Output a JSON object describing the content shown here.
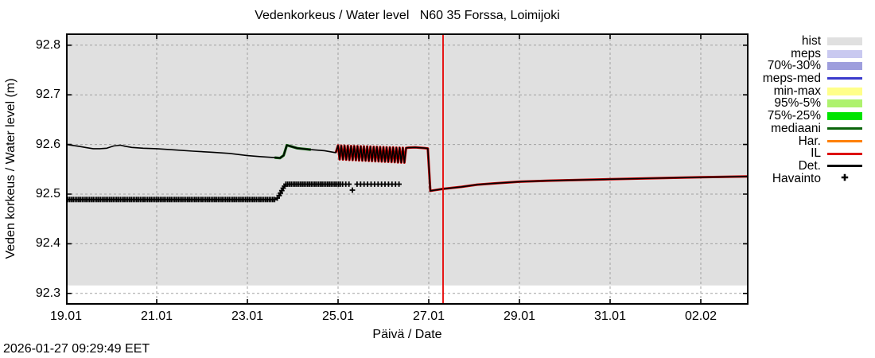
{
  "footer": {
    "timestamp": "2026-01-27 09:29:49 EET"
  },
  "legend": {
    "entries": [
      {
        "label": "hist",
        "type": "band",
        "color": "#e0e0e0"
      },
      {
        "label": "meps",
        "type": "band",
        "color": "#c9c9f0"
      },
      {
        "label": "70%-30%",
        "type": "band",
        "color": "#9e9edd"
      },
      {
        "label": "meps-med",
        "type": "line",
        "color": "#3a3acc"
      },
      {
        "label": "min-max",
        "type": "band",
        "color": "#ffff8a"
      },
      {
        "label": "95%-5%",
        "type": "band",
        "color": "#aef26e"
      },
      {
        "label": "75%-25%",
        "type": "band",
        "color": "#00e400"
      },
      {
        "label": "mediaani",
        "type": "line",
        "color": "#0a640a"
      },
      {
        "label": "Har.",
        "type": "line",
        "color": "#ff8000"
      },
      {
        "label": "IL",
        "type": "line",
        "color": "#dd0000"
      },
      {
        "label": "Det.",
        "type": "line",
        "color": "#000000"
      },
      {
        "label": "Havainto",
        "type": "marker",
        "color": "#000000"
      }
    ],
    "marker_glyph": "✚"
  },
  "chart_data": {
    "type": "line",
    "title": "Vedenkorkeus / Water level   N60 35 Forssa, Loimijoki",
    "xlabel": "Päivä / Date",
    "ylabel": "Veden korkeus / Water level (m)",
    "xlim": [
      19.0,
      34.053
    ],
    "ylim": [
      92.2772,
      92.8237
    ],
    "grid": true,
    "x_ticks": [
      {
        "d": 19,
        "label": "19.01"
      },
      {
        "d": 21,
        "label": "21.01"
      },
      {
        "d": 23,
        "label": "23.01"
      },
      {
        "d": 25,
        "label": "25.01"
      },
      {
        "d": 27,
        "label": "27.01"
      },
      {
        "d": 29,
        "label": "29.01"
      },
      {
        "d": 31,
        "label": "31.01"
      },
      {
        "d": 33,
        "label": "02.02"
      }
    ],
    "y_ticks": [
      {
        "v": 92.3,
        "label": "92.3"
      },
      {
        "v": 92.4,
        "label": "92.4"
      },
      {
        "v": 92.5,
        "label": "92.5"
      },
      {
        "v": 92.6,
        "label": "92.6"
      },
      {
        "v": 92.7,
        "label": "92.7"
      },
      {
        "v": 92.8,
        "label": "92.8"
      }
    ],
    "hist_band": {
      "top": 92.8237,
      "bottom": 92.316,
      "color": "#e0e0e0"
    },
    "now_line": {
      "day": 27.316,
      "color": "#e60000"
    },
    "underlays": [
      {
        "name": "mediaani",
        "color": "#0a640a",
        "from": 23.5,
        "to": 24.5,
        "width": 3.2
      },
      {
        "name": "IL",
        "color": "#cc0000",
        "from": 24.95,
        "to": 34.053,
        "width": 3.0
      },
      {
        "name": "Har",
        "color": "#ff8000",
        "from": 29.3,
        "to": 29.6,
        "width": 3.0
      },
      {
        "name": "Har",
        "color": "#ff8000",
        "from": 30.7,
        "to": 30.95,
        "width": 3.0
      },
      {
        "name": "Har",
        "color": "#ff8000",
        "from": 32.8,
        "to": 33.05,
        "width": 3.0
      }
    ],
    "series": [
      {
        "name": "Det.",
        "color": "#000000",
        "points": [
          [
            19.0,
            92.6
          ],
          [
            19.15,
            92.598
          ],
          [
            19.3,
            92.596
          ],
          [
            19.45,
            92.5935
          ],
          [
            19.6,
            92.5915
          ],
          [
            19.75,
            92.5915
          ],
          [
            19.9,
            92.5925
          ],
          [
            20.05,
            92.597
          ],
          [
            20.2,
            92.5985
          ],
          [
            20.3,
            92.5965
          ],
          [
            20.45,
            92.594
          ],
          [
            20.7,
            92.5925
          ],
          [
            21.0,
            92.5915
          ],
          [
            21.4,
            92.589
          ],
          [
            21.8,
            92.5865
          ],
          [
            22.2,
            92.5845
          ],
          [
            22.6,
            92.582
          ],
          [
            23.0,
            92.5775
          ],
          [
            23.3,
            92.5755
          ],
          [
            23.6,
            92.5735
          ],
          [
            23.72,
            92.5725
          ],
          [
            23.8,
            92.578
          ],
          [
            23.87,
            92.5985
          ],
          [
            23.95,
            92.5965
          ],
          [
            24.1,
            92.5925
          ],
          [
            24.4,
            92.5895
          ],
          [
            24.7,
            92.5875
          ],
          [
            24.95,
            92.5835
          ],
          [
            25.0,
            92.598
          ],
          [
            25.036,
            92.5698
          ],
          [
            25.071,
            92.5978
          ],
          [
            25.107,
            92.5695
          ],
          [
            25.143,
            92.5975
          ],
          [
            25.179,
            92.5692
          ],
          [
            25.214,
            92.5973
          ],
          [
            25.25,
            92.5688
          ],
          [
            25.286,
            92.597
          ],
          [
            25.321,
            92.5685
          ],
          [
            25.357,
            92.5968
          ],
          [
            25.393,
            92.5682
          ],
          [
            25.429,
            92.5966
          ],
          [
            25.464,
            92.5678
          ],
          [
            25.5,
            92.5963
          ],
          [
            25.536,
            92.5675
          ],
          [
            25.571,
            92.5961
          ],
          [
            25.607,
            92.5672
          ],
          [
            25.643,
            92.5959
          ],
          [
            25.679,
            92.5668
          ],
          [
            25.714,
            92.5956
          ],
          [
            25.75,
            92.5665
          ],
          [
            25.786,
            92.5954
          ],
          [
            25.821,
            92.5662
          ],
          [
            25.857,
            92.5951
          ],
          [
            25.893,
            92.5658
          ],
          [
            25.929,
            92.5949
          ],
          [
            25.964,
            92.5655
          ],
          [
            26.0,
            92.5947
          ],
          [
            26.036,
            92.5652
          ],
          [
            26.071,
            92.5944
          ],
          [
            26.107,
            92.5648
          ],
          [
            26.143,
            92.5942
          ],
          [
            26.179,
            92.5645
          ],
          [
            26.214,
            92.594
          ],
          [
            26.25,
            92.5642
          ],
          [
            26.286,
            92.5937
          ],
          [
            26.321,
            92.5638
          ],
          [
            26.357,
            92.5935
          ],
          [
            26.393,
            92.5635
          ],
          [
            26.429,
            92.5932
          ],
          [
            26.464,
            92.5632
          ],
          [
            26.5,
            92.593
          ],
          [
            26.55,
            92.5935
          ],
          [
            26.7,
            92.594
          ],
          [
            26.9,
            92.5928
          ],
          [
            26.98,
            92.592
          ],
          [
            27.035,
            92.5065
          ],
          [
            27.1,
            92.5075
          ],
          [
            27.32,
            92.5105
          ],
          [
            27.72,
            92.5145
          ],
          [
            28.07,
            92.519
          ],
          [
            28.42,
            92.5215
          ],
          [
            29.0,
            92.525
          ],
          [
            29.65,
            92.527
          ],
          [
            30.0,
            92.5278
          ],
          [
            31.0,
            92.53
          ],
          [
            32.0,
            92.532
          ],
          [
            33.0,
            92.534
          ],
          [
            34.053,
            92.5355
          ]
        ]
      }
    ],
    "observations": {
      "name": "Havainto",
      "marker": "plus",
      "color": "#000000",
      "dense": [
        {
          "from": 19.0,
          "to": 23.62,
          "step": 0.04,
          "value": 92.489
        },
        {
          "from": 23.85,
          "to": 25.07,
          "step": 0.04,
          "value": 92.52
        }
      ],
      "step_up": [
        [
          23.66,
          92.492
        ],
        [
          23.7,
          92.497
        ],
        [
          23.73,
          92.502
        ],
        [
          23.76,
          92.507
        ],
        [
          23.79,
          92.512
        ],
        [
          23.82,
          92.516
        ]
      ],
      "sparse": [
        {
          "from": 25.1,
          "to": 25.25,
          "step": 0.07,
          "value": 92.52
        },
        {
          "from": 25.42,
          "to": 26.4,
          "step": 0.077,
          "value": 92.52
        }
      ],
      "single": [
        [
          25.316,
          92.508
        ]
      ]
    }
  }
}
